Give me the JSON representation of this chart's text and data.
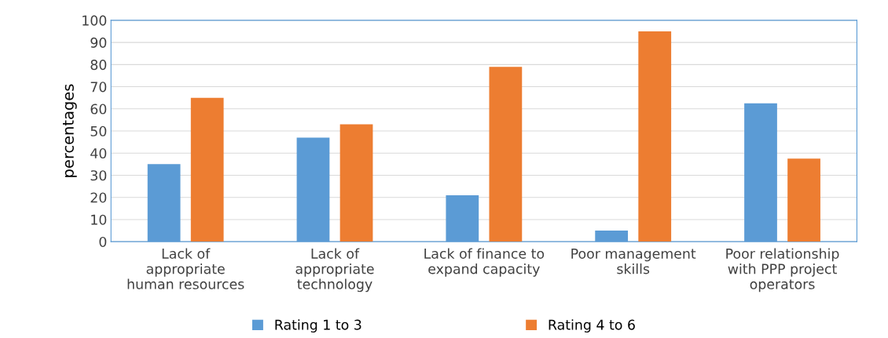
{
  "chart_data": {
    "type": "bar",
    "ylabel": "percentages",
    "categories": [
      "Lack of\nappropriate\nhuman resources",
      "Lack of\nappropriate\ntechnology",
      "Lack of finance to\nexpand capacity",
      "Poor management\nskills",
      "Poor relationship\nwith PPP project\noperators"
    ],
    "series": [
      {
        "name": "Rating 1 to 3",
        "color": "#5b9bd5",
        "values": [
          35,
          47,
          21,
          5,
          62.5
        ]
      },
      {
        "name": "Rating 4 to 6",
        "color": "#ed7d31",
        "values": [
          65,
          53,
          79,
          95,
          37.5
        ]
      }
    ],
    "ylim": [
      0,
      100
    ],
    "yticks": [
      0,
      10,
      20,
      30,
      40,
      50,
      60,
      70,
      80,
      90,
      100
    ],
    "grid": "y",
    "legend": "bottom"
  }
}
